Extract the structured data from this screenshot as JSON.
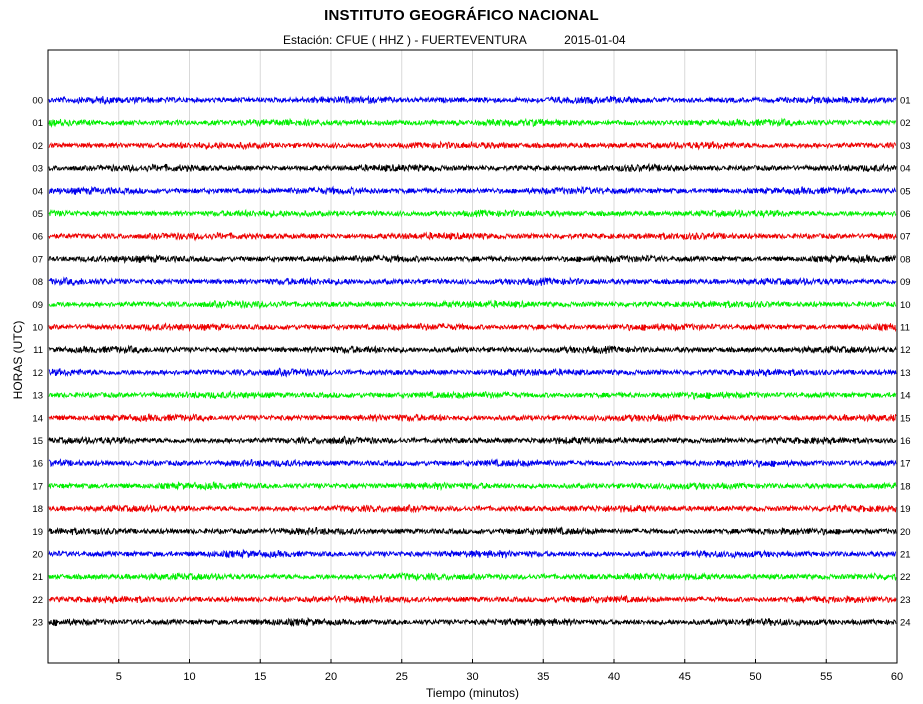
{
  "header": {
    "title": "INSTITUTO GEOGRÁFICO NACIONAL",
    "station": "Estación:  CFUE ( HHZ ) - FUERTEVENTURA",
    "date": "2015-01-04"
  },
  "chart_data": {
    "type": "line",
    "xlabel": "Tiempo (minutos)",
    "ylabel": "HORAS (UTC)",
    "xlim": [
      0,
      60
    ],
    "x_ticks": [
      5,
      10,
      15,
      20,
      25,
      30,
      35,
      40,
      45,
      50,
      55,
      60
    ],
    "grid": "vertical",
    "left_labels": [
      "00",
      "01",
      "02",
      "03",
      "04",
      "05",
      "06",
      "07",
      "08",
      "09",
      "10",
      "11",
      "12",
      "13",
      "14",
      "15",
      "16",
      "17",
      "18",
      "19",
      "20",
      "21",
      "22",
      "23"
    ],
    "right_labels": [
      "01",
      "02",
      "03",
      "04",
      "05",
      "06",
      "07",
      "08",
      "09",
      "10",
      "11",
      "12",
      "13",
      "14",
      "15",
      "16",
      "17",
      "18",
      "19",
      "20",
      "21",
      "22",
      "23",
      "24"
    ],
    "trace_colors": [
      "#0000ee",
      "#00ee00",
      "#ee0000",
      "#000000"
    ]
  }
}
